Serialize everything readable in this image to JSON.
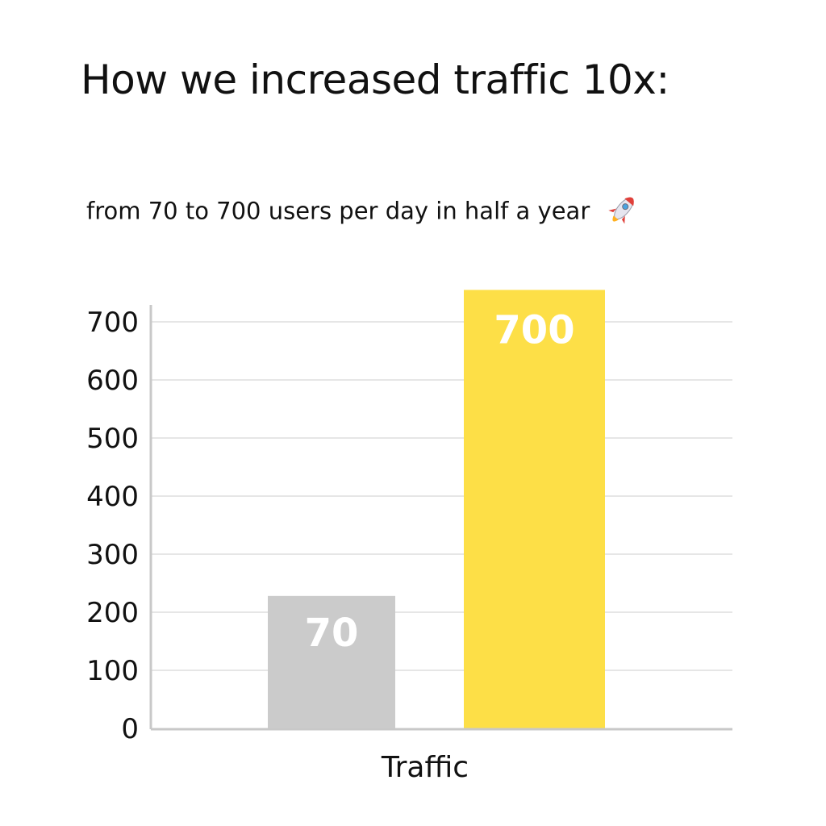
{
  "title": "How we increased traffic 10x:",
  "subtitle": "from 70 to 700 users per day in half a year",
  "subtitle_icon": "rocket-icon",
  "chart_data": {
    "type": "bar",
    "categories": [
      "Traffic"
    ],
    "xlabel": "Traffic",
    "ylabel": "",
    "ylim": [
      0,
      750
    ],
    "y_ticks": [
      0,
      100,
      200,
      300,
      400,
      500,
      600,
      700
    ],
    "grid": true,
    "legend": "none",
    "bars": [
      {
        "display_height": 228,
        "label": "70",
        "color": "#cbcbcb"
      },
      {
        "display_height": 755,
        "label": "700",
        "color": "#fddf47"
      }
    ]
  }
}
